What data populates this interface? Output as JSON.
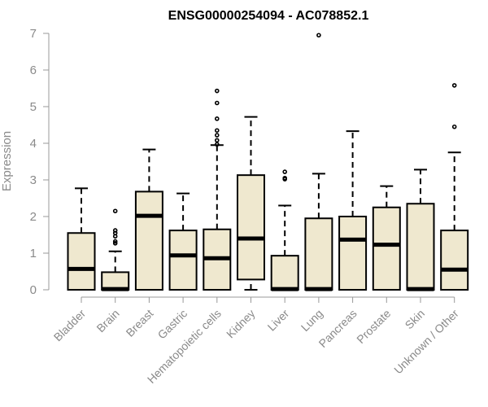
{
  "chart_data": {
    "type": "boxplot",
    "title": "ENSG00000254094 - AC078852.1",
    "ylabel": "Expression",
    "xlabel": "",
    "ylim": [
      0,
      7
    ],
    "yticks": [
      0,
      1,
      2,
      3,
      4,
      5,
      6,
      7
    ],
    "grid": false,
    "colors": {
      "box_fill": "#efe8cf",
      "stroke": "#000000",
      "axis_text": "#8a8a8a"
    },
    "categories": [
      "Bladder",
      "Brain",
      "Breast",
      "Gastric",
      "Hematopoietic cells",
      "Kidney",
      "Liver",
      "Lung",
      "Pancreas",
      "Prostate",
      "Skin",
      "Unknown / Other"
    ],
    "boxes": [
      {
        "name": "Bladder",
        "min": 0,
        "q1": 0,
        "median": 0.57,
        "q3": 1.55,
        "max": 2.77,
        "outliers": []
      },
      {
        "name": "Brain",
        "min": 0,
        "q1": 0,
        "median": 0.02,
        "q3": 0.48,
        "max": 1.05,
        "outliers": [
          1.27,
          1.32,
          1.46,
          1.55,
          1.62,
          2.15
        ]
      },
      {
        "name": "Breast",
        "min": 0,
        "q1": 0,
        "median": 2.02,
        "q3": 2.68,
        "max": 3.83,
        "outliers": []
      },
      {
        "name": "Gastric",
        "min": 0,
        "q1": 0,
        "median": 0.94,
        "q3": 1.62,
        "max": 2.63,
        "outliers": []
      },
      {
        "name": "Hematopoietic cells",
        "min": 0,
        "q1": 0,
        "median": 0.86,
        "q3": 1.65,
        "max": 3.95,
        "outliers": [
          3.97,
          4.08,
          4.22,
          4.35,
          4.67,
          5.1,
          5.43
        ]
      },
      {
        "name": "Kidney",
        "min": 0,
        "q1": 0.28,
        "median": 1.4,
        "q3": 3.13,
        "max": 4.72,
        "outliers": []
      },
      {
        "name": "Liver",
        "min": 0,
        "q1": 0,
        "median": 0.02,
        "q3": 0.93,
        "max": 2.3,
        "outliers": [
          3.02,
          3.05,
          3.22
        ]
      },
      {
        "name": "Lung",
        "min": 0,
        "q1": 0,
        "median": 0.02,
        "q3": 1.95,
        "max": 3.17,
        "outliers": [
          6.95
        ]
      },
      {
        "name": "Pancreas",
        "min": 0,
        "q1": 0,
        "median": 1.37,
        "q3": 2.0,
        "max": 4.33,
        "outliers": []
      },
      {
        "name": "Prostate",
        "min": 0,
        "q1": 0,
        "median": 1.23,
        "q3": 2.25,
        "max": 2.83,
        "outliers": []
      },
      {
        "name": "Skin",
        "min": 0,
        "q1": 0,
        "median": 0.02,
        "q3": 2.35,
        "max": 3.28,
        "outliers": []
      },
      {
        "name": "Unknown / Other",
        "min": 0,
        "q1": 0,
        "median": 0.55,
        "q3": 1.62,
        "max": 3.75,
        "outliers": [
          4.45,
          5.58
        ]
      }
    ]
  }
}
